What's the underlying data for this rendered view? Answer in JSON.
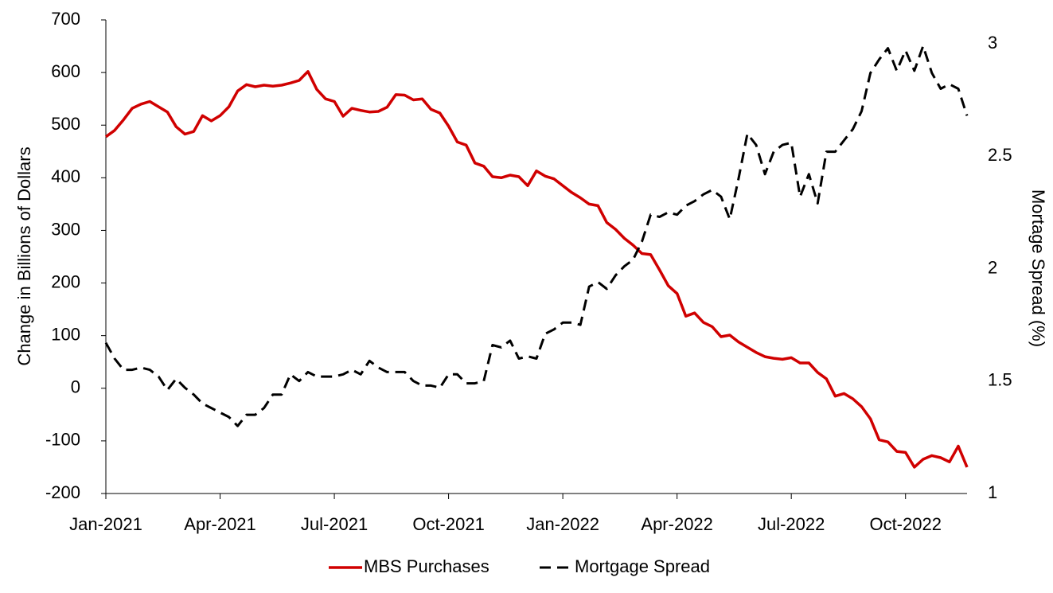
{
  "chart_data": {
    "type": "line",
    "categories": [
      "Jan-2021",
      null,
      null,
      null,
      null,
      null,
      null,
      null,
      null,
      null,
      null,
      null,
      null,
      "Apr-2021",
      null,
      null,
      null,
      null,
      null,
      null,
      null,
      null,
      null,
      null,
      null,
      null,
      "Jul-2021",
      null,
      null,
      null,
      null,
      null,
      null,
      null,
      null,
      null,
      null,
      null,
      null,
      "Oct-2021",
      null,
      null,
      null,
      null,
      null,
      null,
      null,
      null,
      null,
      null,
      null,
      null,
      "Jan-2022",
      null,
      null,
      null,
      null,
      null,
      null,
      null,
      null,
      null,
      null,
      null,
      null,
      "Apr-2022",
      null,
      null,
      null,
      null,
      null,
      null,
      null,
      null,
      null,
      null,
      null,
      null,
      "Jul-2022",
      null,
      null,
      null,
      null,
      null,
      null,
      null,
      null,
      null,
      null,
      null,
      null,
      "Oct-2022",
      null,
      null,
      null,
      null,
      null,
      null,
      null
    ],
    "ylabel": "Change in Billions of Dollars",
    "y2label": "Mortage Spread (%)",
    "ylim": [
      -200,
      700
    ],
    "yticks": [
      -200,
      -100,
      0,
      100,
      200,
      300,
      400,
      500,
      600,
      700
    ],
    "y2lim": [
      1,
      3.106
    ],
    "y2ticks": [
      1,
      1.5,
      2,
      2.5,
      3
    ],
    "series": [
      {
        "name": "MBS Purchases",
        "color": "#d00000",
        "dash": false,
        "values": [
          478,
          490,
          510,
          532,
          540,
          545,
          535,
          525,
          497,
          483,
          488,
          518,
          508,
          518,
          535,
          565,
          577,
          573,
          576,
          574,
          576,
          580,
          585,
          602,
          568,
          550,
          545,
          517,
          532,
          528,
          525,
          526,
          534,
          558,
          557,
          548,
          550,
          530,
          523,
          498,
          468,
          462,
          428,
          422,
          402,
          400,
          405,
          402,
          385,
          413,
          403,
          398,
          385,
          372,
          362,
          350,
          347,
          315,
          302,
          285,
          272,
          256,
          254,
          225,
          195,
          180,
          137,
          143,
          125,
          117,
          98,
          101,
          88,
          78,
          68,
          60,
          57,
          55,
          58,
          48,
          48,
          30,
          18,
          -15,
          -10,
          -20,
          -35,
          -58,
          -98,
          -102,
          -120,
          -122,
          -150,
          -135,
          -128,
          -132,
          -140,
          -110,
          -150
        ]
      },
      {
        "name": "Mortgage Spread",
        "color": "#000000",
        "dash": true,
        "axis": "y2",
        "values": [
          1.67,
          1.6,
          1.55,
          1.55,
          1.56,
          1.55,
          1.52,
          1.46,
          1.51,
          1.47,
          1.44,
          1.4,
          1.38,
          1.36,
          1.34,
          1.3,
          1.35,
          1.35,
          1.38,
          1.44,
          1.44,
          1.53,
          1.5,
          1.54,
          1.52,
          1.52,
          1.52,
          1.53,
          1.55,
          1.53,
          1.59,
          1.56,
          1.54,
          1.54,
          1.54,
          1.5,
          1.48,
          1.48,
          1.47,
          1.53,
          1.53,
          1.49,
          1.49,
          1.5,
          1.66,
          1.65,
          1.68,
          1.6,
          1.61,
          1.6,
          1.71,
          1.73,
          1.76,
          1.76,
          1.75,
          1.92,
          1.94,
          1.91,
          1.97,
          2.01,
          2.04,
          2.12,
          2.24,
          2.23,
          2.25,
          2.24,
          2.28,
          2.3,
          2.33,
          2.35,
          2.32,
          2.22,
          2.4,
          2.6,
          2.55,
          2.42,
          2.52,
          2.55,
          2.56,
          2.32,
          2.42,
          2.29,
          2.52,
          2.52,
          2.57,
          2.62,
          2.7,
          2.87,
          2.93,
          2.98,
          2.88,
          2.97,
          2.88,
          2.99,
          2.87,
          2.8,
          2.82,
          2.8,
          2.68
        ]
      }
    ]
  }
}
